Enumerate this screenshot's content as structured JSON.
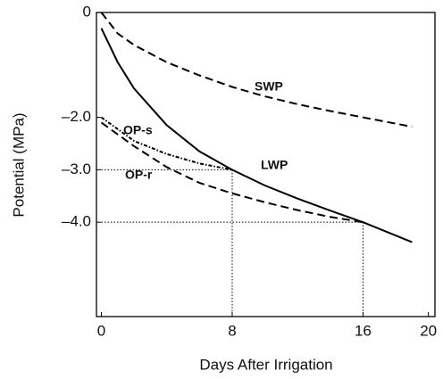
{
  "chart_data": {
    "type": "line",
    "x_label": "Days After Irrigation",
    "y_label": "Potential  (MPa)",
    "xlim": [
      -0.3,
      20.4
    ],
    "ylim": [
      -5.8,
      0
    ],
    "xticks": [
      0,
      8,
      16,
      20
    ],
    "yticks": [
      0,
      {
        "value": -2,
        "label": "–2.0"
      },
      {
        "value": -3,
        "label": "–3.0"
      },
      {
        "value": -4,
        "label": "–4.0"
      }
    ],
    "color": "#000000",
    "series": [
      {
        "name": "SWP",
        "style": "dashed",
        "x": [
          0,
          1,
          2,
          4,
          6,
          8,
          10,
          12,
          14,
          16,
          18,
          19
        ],
        "values": [
          0,
          -0.4,
          -0.62,
          -0.95,
          -1.2,
          -1.42,
          -1.6,
          -1.75,
          -1.88,
          -2.0,
          -2.12,
          -2.18
        ]
      },
      {
        "name": "LWP",
        "style": "solid",
        "x": [
          0,
          1,
          2,
          4,
          6,
          8,
          10,
          12,
          14,
          16,
          19
        ],
        "values": [
          -0.3,
          -0.95,
          -1.45,
          -2.15,
          -2.65,
          -3.0,
          -3.3,
          -3.55,
          -3.78,
          -4.0,
          -4.38
        ]
      },
      {
        "name": "OP-s",
        "style": "dotted",
        "x": [
          0,
          2,
          4,
          6,
          8
        ],
        "values": [
          -2.0,
          -2.45,
          -2.7,
          -2.88,
          -3.0
        ]
      },
      {
        "name": "OP-r",
        "style": "dashed",
        "x": [
          0,
          2,
          4,
          6,
          8,
          10,
          12,
          14,
          16
        ],
        "values": [
          -2.1,
          -2.55,
          -2.95,
          -3.25,
          -3.45,
          -3.62,
          -3.77,
          -3.9,
          -4.0
        ]
      }
    ],
    "reference_lines": [
      {
        "x": 8,
        "y": -3
      },
      {
        "x": 16,
        "y": -4
      }
    ]
  }
}
